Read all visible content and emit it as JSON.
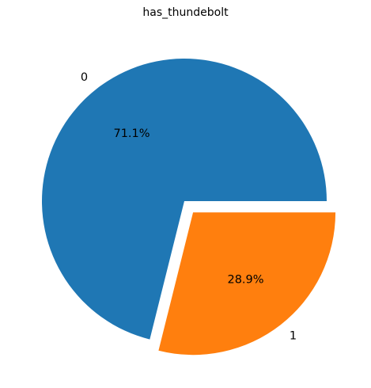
{
  "chart_data": {
    "type": "pie",
    "title": "has_thundebolt",
    "slices": [
      {
        "label": "0",
        "value": 71.1,
        "pct_label": "71.1%",
        "color": "#1f77b4",
        "explode": 0
      },
      {
        "label": "1",
        "value": 28.9,
        "pct_label": "28.9%",
        "color": "#ff7f0e",
        "explode": 0.1
      }
    ],
    "legend": false
  }
}
